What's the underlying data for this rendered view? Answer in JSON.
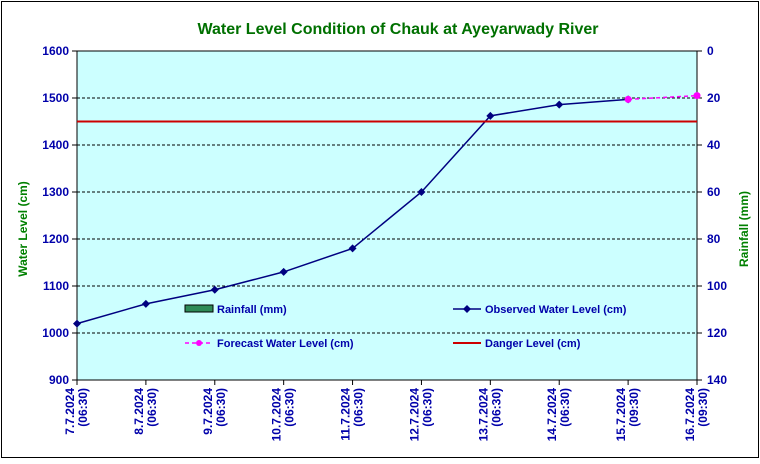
{
  "chart_data": {
    "type": "line",
    "title": "Water Level Condition of Chauk at Ayeyarwady River",
    "ylabel": "Water Level (cm)",
    "y2label": "Rainfall (mm)",
    "ylim": [
      900,
      1600
    ],
    "y_ticks": [
      900,
      1000,
      1100,
      1200,
      1300,
      1400,
      1500,
      1600
    ],
    "y2lim": [
      140,
      0
    ],
    "y2_ticks": [
      140,
      120,
      100,
      80,
      60,
      40,
      20,
      0
    ],
    "categories": [
      "7.7.2024 (06:30)",
      "8.7.2024 (06:30)",
      "9.7.2024 (06:30)",
      "10.7.2024 (06:30)",
      "11.7.2024 (06:30)",
      "12.7.2024 (06:30)",
      "13.7.2024 (06:30)",
      "14.7.2024 (06:30)",
      "15.7.2024 (09:30)",
      "16.7.2024 (09:30)"
    ],
    "series": [
      {
        "name": "Rainfall (mm)",
        "kind": "bar",
        "axis": "right",
        "color": "#2e8b57",
        "values": [
          0,
          0,
          0,
          0,
          0,
          0,
          0,
          0,
          0,
          0
        ]
      },
      {
        "name": "Observed Water Level (cm)",
        "kind": "line",
        "color": "#000080",
        "values": [
          1020,
          1062,
          1092,
          1130,
          1180,
          1300,
          1462,
          1486,
          1497,
          null
        ]
      },
      {
        "name": "Forecast Water Level (cm)",
        "kind": "dashed",
        "color": "#ff00ff",
        "values": [
          null,
          null,
          null,
          null,
          null,
          null,
          null,
          null,
          1497,
          1505
        ]
      },
      {
        "name": "Danger Level (cm)",
        "kind": "hline",
        "color": "#cc0000",
        "value": 1450
      }
    ],
    "grid": true,
    "legend": "inside-bottom"
  },
  "colors": {
    "plot_bg": "#ccffff",
    "title": "#007000",
    "axis_label": "#008000",
    "tick_text": "#0000aa"
  }
}
